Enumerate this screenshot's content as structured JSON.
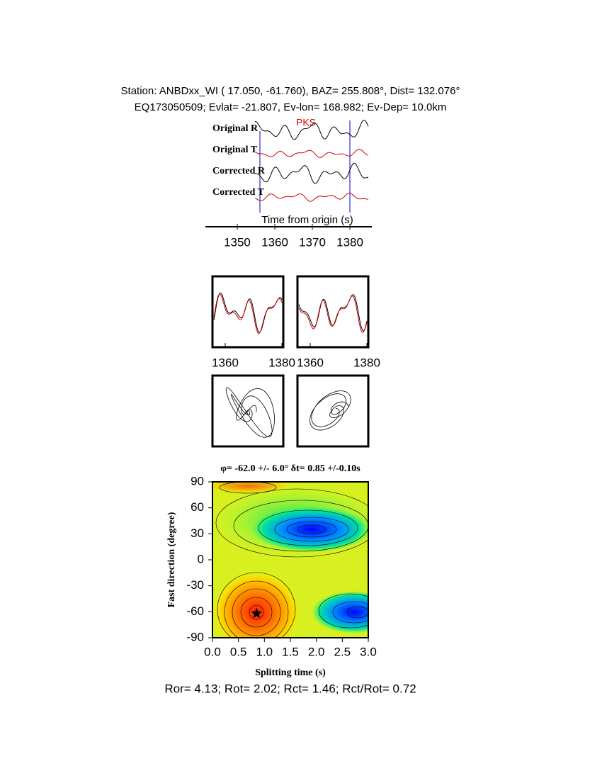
{
  "header": {
    "line1": "Station: ANBDxx_WI (  17.050,  -61.760), BAZ=  255.808°, Dist=  132.076°",
    "line2": "EQ173050509; Evlat= -21.807, Ev-lon= 168.982; Ev-Dep= 10.0km"
  },
  "traces": {
    "labels": [
      "Original R",
      "Original T",
      "Corrected R",
      "Corrected T"
    ],
    "phase": "PKS",
    "xlabel": "Time from origin (s)",
    "xlim": [
      1343.4,
      1384.9
    ],
    "xticks": [
      1350,
      1360,
      1370,
      1380
    ]
  },
  "waveform_panels": {
    "xlim": [
      1355.5,
      1380.5
    ],
    "xticks": [
      1360,
      1380
    ]
  },
  "contour": {
    "title": "φ= -62.0 +/- 6.0° δt= 0.85 +/-0.10s",
    "xlabel": "Splitting time (s)",
    "ylabel": "Fast direction (degree)",
    "xlim": [
      0,
      3
    ],
    "ylim": [
      -90,
      90
    ],
    "xticks": [
      {
        "value": 0,
        "label": "0.0"
      },
      {
        "value": 0.5,
        "label": "0.5"
      },
      {
        "value": 1,
        "label": "1.0"
      },
      {
        "value": 1.5,
        "label": "1.5"
      },
      {
        "value": 2,
        "label": "2.0"
      },
      {
        "value": 2.5,
        "label": "2.5"
      },
      {
        "value": 3,
        "label": "3.0"
      }
    ],
    "yticks": [
      -90,
      -60,
      -30,
      0,
      30,
      60,
      90
    ],
    "best": {
      "x": 0.85,
      "y": -62
    }
  },
  "footer": "Ror= 4.13; Rot= 2.02; Rct= 1.46; Rct/Rot= 0.72"
}
